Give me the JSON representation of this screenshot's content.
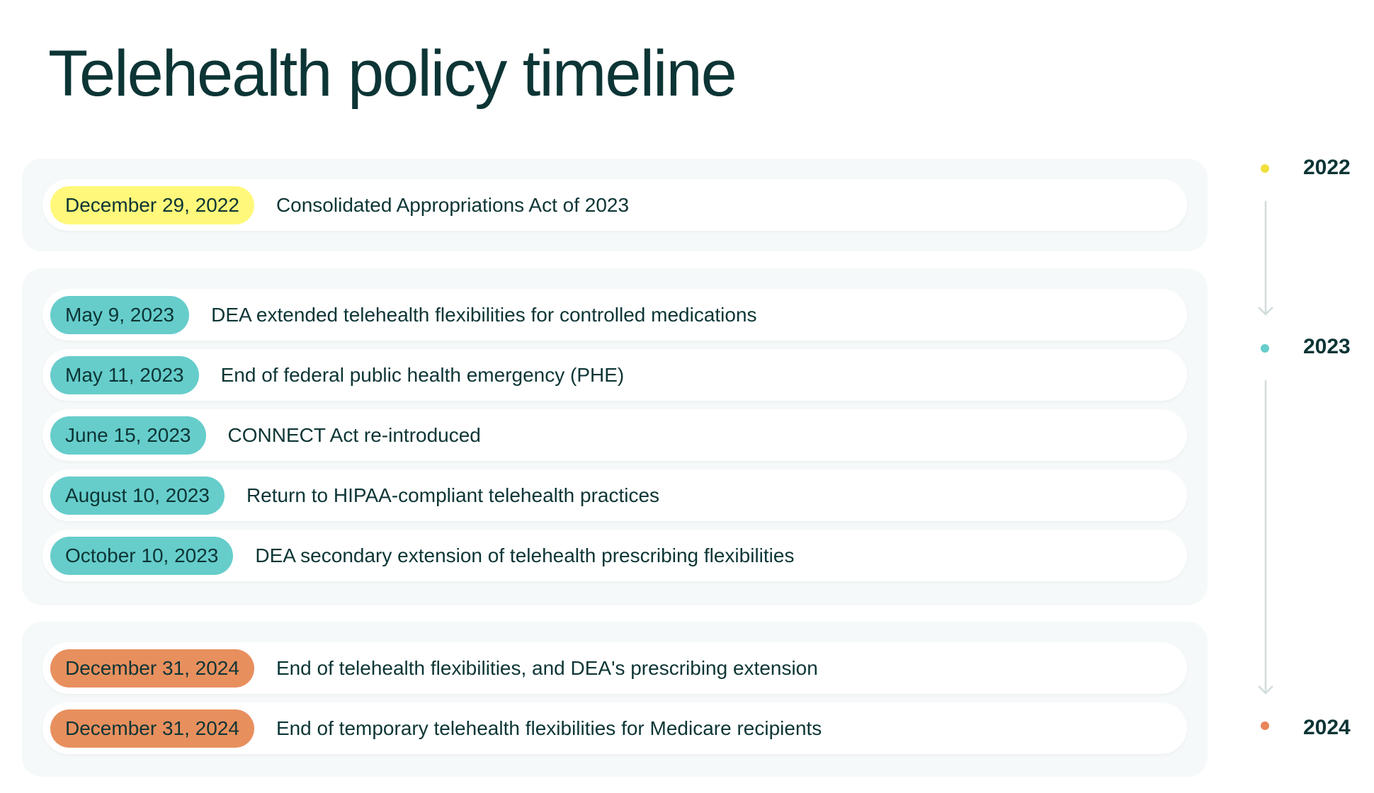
{
  "title": "Telehealth policy timeline",
  "colors": {
    "y2022": "#fff87a",
    "y2023": "#66cdcb",
    "y2024": "#e88f5e",
    "dot2022": "#f0e03c",
    "dot2023": "#66cdcb",
    "dot2024": "#e8855a",
    "text": "#0d3535",
    "arrow": "#d3dcdd"
  },
  "groups": [
    {
      "year": "2022",
      "events": [
        {
          "date": "December 29, 2022",
          "text": "Consolidated Appropriations Act of 2023"
        }
      ]
    },
    {
      "year": "2023",
      "events": [
        {
          "date": "May 9, 2023",
          "text": "DEA extended telehealth flexibilities for controlled medications"
        },
        {
          "date": "May 11, 2023",
          "text": "End of federal public health emergency (PHE)"
        },
        {
          "date": "June 15, 2023",
          "text": "CONNECT Act re-introduced"
        },
        {
          "date": "August 10, 2023",
          "text": "Return to HIPAA-compliant telehealth practices"
        },
        {
          "date": "October 10, 2023",
          "text": "DEA secondary extension of telehealth prescribing flexibilities"
        }
      ]
    },
    {
      "year": "2024",
      "events": [
        {
          "date": "December 31, 2024",
          "text": "End of telehealth flexibilities, and DEA's prescribing extension"
        },
        {
          "date": "December 31, 2024",
          "text": "End of temporary telehealth flexibilities for Medicare recipients"
        }
      ]
    }
  ]
}
